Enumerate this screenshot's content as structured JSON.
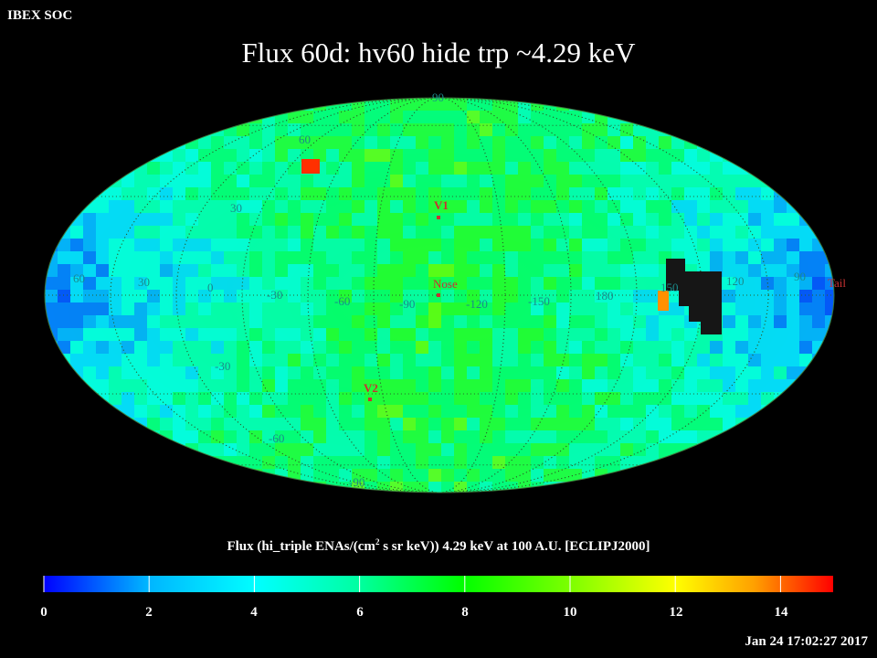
{
  "header": {
    "corner_label": "IBEX SOC",
    "title": "Flux   60d: hv60 hide trp ~4.29 keV"
  },
  "colorbar": {
    "title_pre": "Flux (hi_triple ENAs/(cm",
    "title_sup": "2",
    "title_post": " s sr keV))  4.29 keV at 100 A.U. [ECLIPJ2000]",
    "ticks": [
      "0",
      "2",
      "4",
      "6",
      "8",
      "10",
      "12",
      "14"
    ],
    "range": [
      0,
      15
    ],
    "stops": [
      "#0000ff",
      "#00b4ff",
      "#00ffff",
      "#00ffa0",
      "#00ff00",
      "#80ff00",
      "#ffff00",
      "#ffa000",
      "#ff0000"
    ]
  },
  "footer": {
    "timestamp": "Jan 24 17:02:27 2017"
  },
  "map": {
    "projection": "Mollweide (Aitoff-style all-sky), ecliptic J2000",
    "longitude_labels": [
      "60",
      "30",
      "0",
      "-30",
      "-60",
      "-90",
      "-120",
      "-150",
      "180",
      "150",
      "120",
      "90"
    ],
    "latitude_labels": {
      "top": "90",
      "n60": "60",
      "n30": "30",
      "s30": "-30",
      "s60": "-60",
      "bottom": "-90"
    },
    "markers": [
      {
        "label": "V1",
        "color": "#c83232"
      },
      {
        "label": "Nose",
        "color": "#c83232"
      },
      {
        "label": "V2",
        "color": "#c83232"
      },
      {
        "label": "Tail",
        "color": "#c83232"
      }
    ],
    "colors": {
      "background": "#000000",
      "grid": "#2a5f2a",
      "missing_data": "#1a1a1a"
    }
  }
}
